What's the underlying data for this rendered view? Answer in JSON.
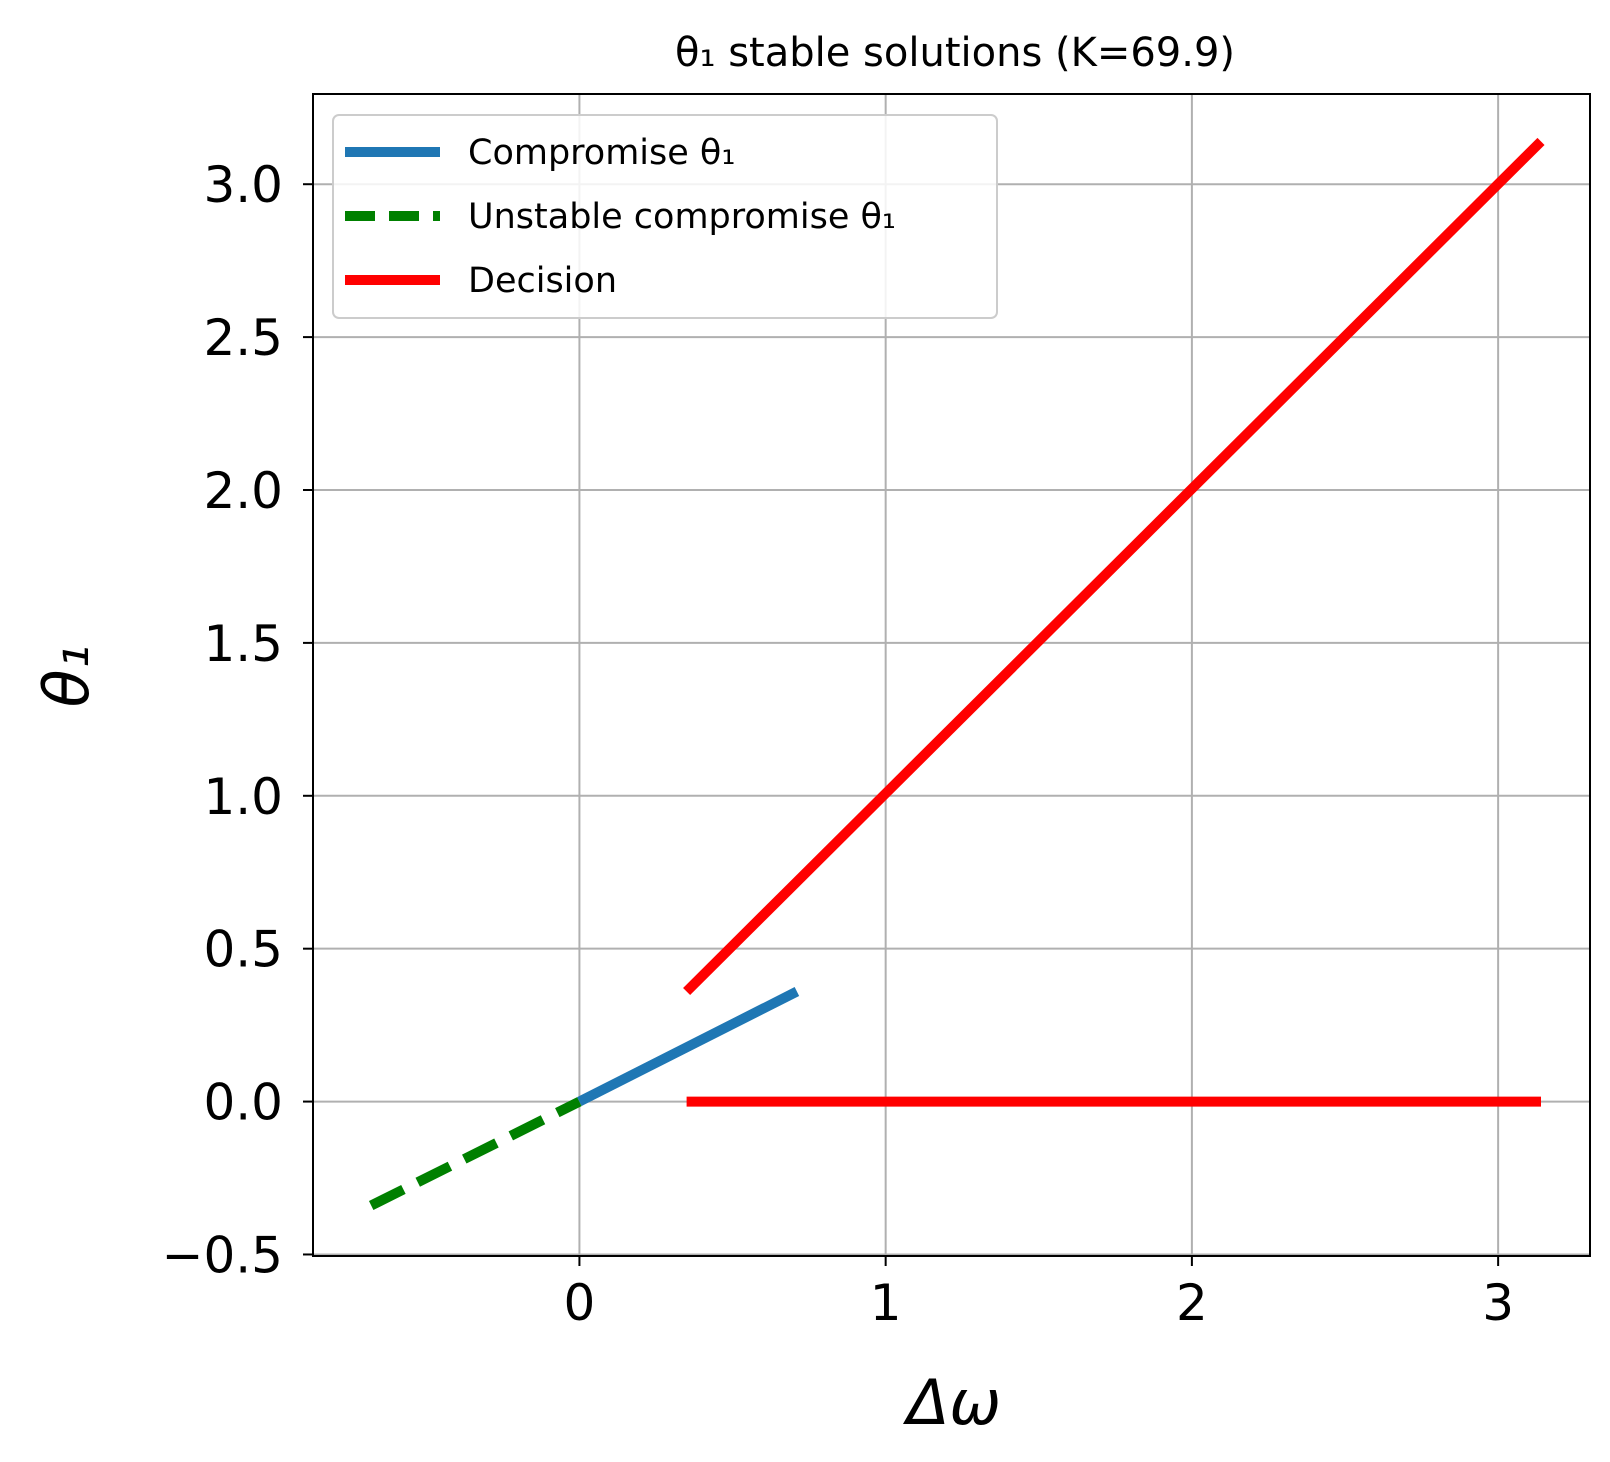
{
  "chart_data": {
    "type": "line",
    "title": "θ₁ stable solutions (K=69.9)",
    "xlabel": "Δω",
    "ylabel": "θ₁",
    "xlim": [
      -0.87,
      3.3
    ],
    "ylim": [
      -0.505,
      3.295
    ],
    "xticks": [
      0,
      1,
      2,
      3
    ],
    "xtick_labels": [
      "0",
      "1",
      "2",
      "3"
    ],
    "yticks": [
      -0.5,
      0.0,
      0.5,
      1.0,
      1.5,
      2.0,
      2.5,
      3.0
    ],
    "ytick_labels": [
      "−0.5",
      "0.0",
      "0.5",
      "1.0",
      "1.5",
      "2.0",
      "2.5",
      "3.0"
    ],
    "grid": true,
    "legend_position": "top-left",
    "series": [
      {
        "name": "Compromise θ₁",
        "color": "#1f77b4",
        "dash": "solid",
        "segments": [
          [
            [
              0.0,
              0.0
            ],
            [
              0.71,
              0.36
            ]
          ]
        ]
      },
      {
        "name": "Unstable compromise θ₁",
        "color": "#008000",
        "dash": "dashed",
        "segments": [
          [
            [
              -0.68,
              -0.34
            ],
            [
              0.0,
              0.0
            ]
          ]
        ]
      },
      {
        "name": "Decision",
        "color": "#ff0000",
        "dash": "solid",
        "segments": [
          [
            [
              0.35,
              0.36
            ],
            [
              3.14,
              3.14
            ]
          ],
          [
            [
              0.35,
              0.0
            ],
            [
              3.14,
              0.0
            ]
          ]
        ]
      }
    ]
  }
}
